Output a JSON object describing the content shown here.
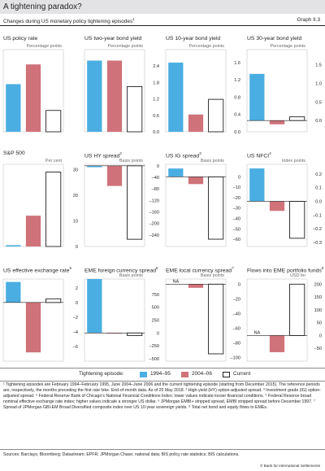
{
  "header": {
    "title": "A tightening paradox?",
    "subtitle": "Changes during US monetary policy tightening episodes",
    "subtitle_sup": "1",
    "graph_id": "Graph II.3"
  },
  "colors": {
    "s1994": "#4aaee3",
    "s2004": "#d0727a",
    "current": "#ffffff",
    "current_border": "#231f20"
  },
  "legend": {
    "title": "Tightening episode:",
    "items": [
      "1994–95",
      "2004–06",
      "Current"
    ]
  },
  "chart_data": [
    {
      "type": "bar",
      "title": "US policy rate",
      "sup": "",
      "unit": "Percentage points",
      "ylim": [
        0,
        5
      ],
      "yticks": [
        "3",
        "2",
        "1",
        "0"
      ],
      "yticks_hidden": true,
      "categories": [
        "1994–95",
        "2004–06",
        "Current"
      ],
      "values": [
        2.9,
        4.1,
        1.3
      ]
    },
    {
      "type": "bar",
      "title": "US two-year bond yield",
      "sup": "",
      "unit": "Percentage points",
      "ylim": [
        0,
        3.0
      ],
      "yticks": [
        "2.4",
        "1.8",
        "1.2",
        "0.6",
        "0.0"
      ],
      "categories": [
        "1994–95",
        "2004–06",
        "Current"
      ],
      "values": [
        2.6,
        2.6,
        1.65
      ]
    },
    {
      "type": "bar",
      "title": "US 10-year bond yield",
      "sup": "",
      "unit": "Percentage points",
      "ylim": [
        0,
        1.9
      ],
      "yticks": [
        "1.6",
        "1.2",
        "0.8",
        "0.4",
        "0.0"
      ],
      "categories": [
        "1994–95",
        "2004–06",
        "Current"
      ],
      "values": [
        1.6,
        0.4,
        0.75
      ]
    },
    {
      "type": "bar",
      "title": "US 30-year bond yield",
      "sup": "",
      "unit": "Percentage points",
      "ylim": [
        -0.3,
        1.9
      ],
      "yticks": [
        "1.5",
        "1.0",
        "0.5",
        "0.0"
      ],
      "categories": [
        "1994–95",
        "2004–06",
        "Current"
      ],
      "values": [
        1.25,
        -0.1,
        0.1
      ]
    },
    {
      "type": "bar",
      "title": "S&P 500",
      "sup": "",
      "unit": "Per cent",
      "ylim": [
        0,
        32
      ],
      "yticks": [
        "30",
        "20",
        "10",
        "0"
      ],
      "categories": [
        "1994–95",
        "2004–06",
        "Current"
      ],
      "values": [
        0.5,
        12,
        29
      ]
    },
    {
      "type": "bar",
      "title": "US HY spread",
      "sup": "2",
      "unit": "Basis points",
      "ylim": [
        -280,
        5
      ],
      "yticks": [
        "0",
        "–40",
        "–80",
        "–120",
        "–160",
        "–200",
        "–240"
      ],
      "categories": [
        "1994–95",
        "2004–06",
        "Current"
      ],
      "values": [
        -5,
        -70,
        -255
      ]
    },
    {
      "type": "bar",
      "title": "US IG spread",
      "sup": "3",
      "unit": "Basis points",
      "ylim": [
        -67,
        12
      ],
      "yticks": [
        "0",
        "–10",
        "–20",
        "–30",
        "–40",
        "–50",
        "–60"
      ],
      "categories": [
        "1994–95",
        "2004–06",
        "Current"
      ],
      "values": [
        8,
        -7,
        -60
      ]
    },
    {
      "type": "bar",
      "title": "US NFCI",
      "sup": "4",
      "unit": "Index points",
      "ylim": [
        -0.33,
        0.27
      ],
      "yticks": [
        "0.2",
        "0.1",
        "0.0",
        "–0.1",
        "–0.2",
        "–0.3"
      ],
      "categories": [
        "1994–95",
        "2004–06",
        "Current"
      ],
      "values": [
        0.24,
        -0.07,
        -0.27
      ]
    },
    {
      "type": "bar",
      "title": "US effective exchange rate",
      "sup": "5",
      "unit": "",
      "ylim": [
        -8,
        3.2
      ],
      "yticks": [
        "2",
        "0",
        "–2",
        "–4",
        "–6"
      ],
      "categories": [
        "1994–95",
        "2004–06",
        "Current"
      ],
      "values": [
        2.8,
        -6.8,
        0.5
      ]
    },
    {
      "type": "bar",
      "title": "EME foreign currency spread",
      "sup": "6",
      "unit": "Basis points",
      "ylim": [
        -550,
        1050
      ],
      "yticks": [
        "750",
        "500",
        "250",
        "0",
        "–250",
        "–500"
      ],
      "categories": [
        "1994–95",
        "2004–06",
        "Current"
      ],
      "values": [
        1050,
        -10,
        -50
      ]
    },
    {
      "type": "bar",
      "title": "EME local currency spread",
      "sup": "7",
      "unit": "Basis points",
      "ylim": [
        -105,
        7
      ],
      "yticks": [
        "0",
        "–20",
        "–40",
        "–60",
        "–80",
        "–100"
      ],
      "categories": [
        "1994–95",
        "2004–06",
        "Current"
      ],
      "values": [
        null,
        -5,
        -95
      ],
      "na_label": "NA"
    },
    {
      "type": "bar",
      "title": "Flows into EME portfolio funds",
      "sup": "8",
      "unit": "USD bn",
      "ylim": [
        -100,
        220
      ],
      "yticks": [
        "200",
        "150",
        "100",
        "50",
        "0",
        "–50"
      ],
      "categories": [
        "1994–95",
        "2004–06",
        "Current"
      ],
      "values": [
        null,
        -65,
        200
      ],
      "na_label": "NA"
    }
  ],
  "footnote": "¹ Tightening episodes are February 1994–February 1995, June 2004–June 2006 and the current tightening episode (starting from December 2015). The reference periods are, respectively, the months preceding the first rate hike. End-of-month data. As of 25 May 2018. ² High-yield (HY) option-adjusted spread. ³ Investment grade (IG) option-adjusted spread. ⁴ Federal Reserve Bank of Chicago's National Financial Conditions Index; lower values indicate looser financial conditions. ⁵ Federal Reserve broad nominal effective exchange rate index; higher values indicate a stronger US dollar. ⁶ JPMorgan EMBI+ stripped spread, EMBI stripped spread before December 1997. ⁷ Spread of JPMorgan GBI-EM Broad Diversified composite index over US 10-year sovereign yields. ⁸ Total net bond and equity flows to EMEs.",
  "sources": "Sources: Barclays; Bloomberg; Datastream; EPFR; JPMorgan Chase; national data; BIS policy rate statistics; BIS calculations.",
  "copyright": "© Bank for International Settlements"
}
